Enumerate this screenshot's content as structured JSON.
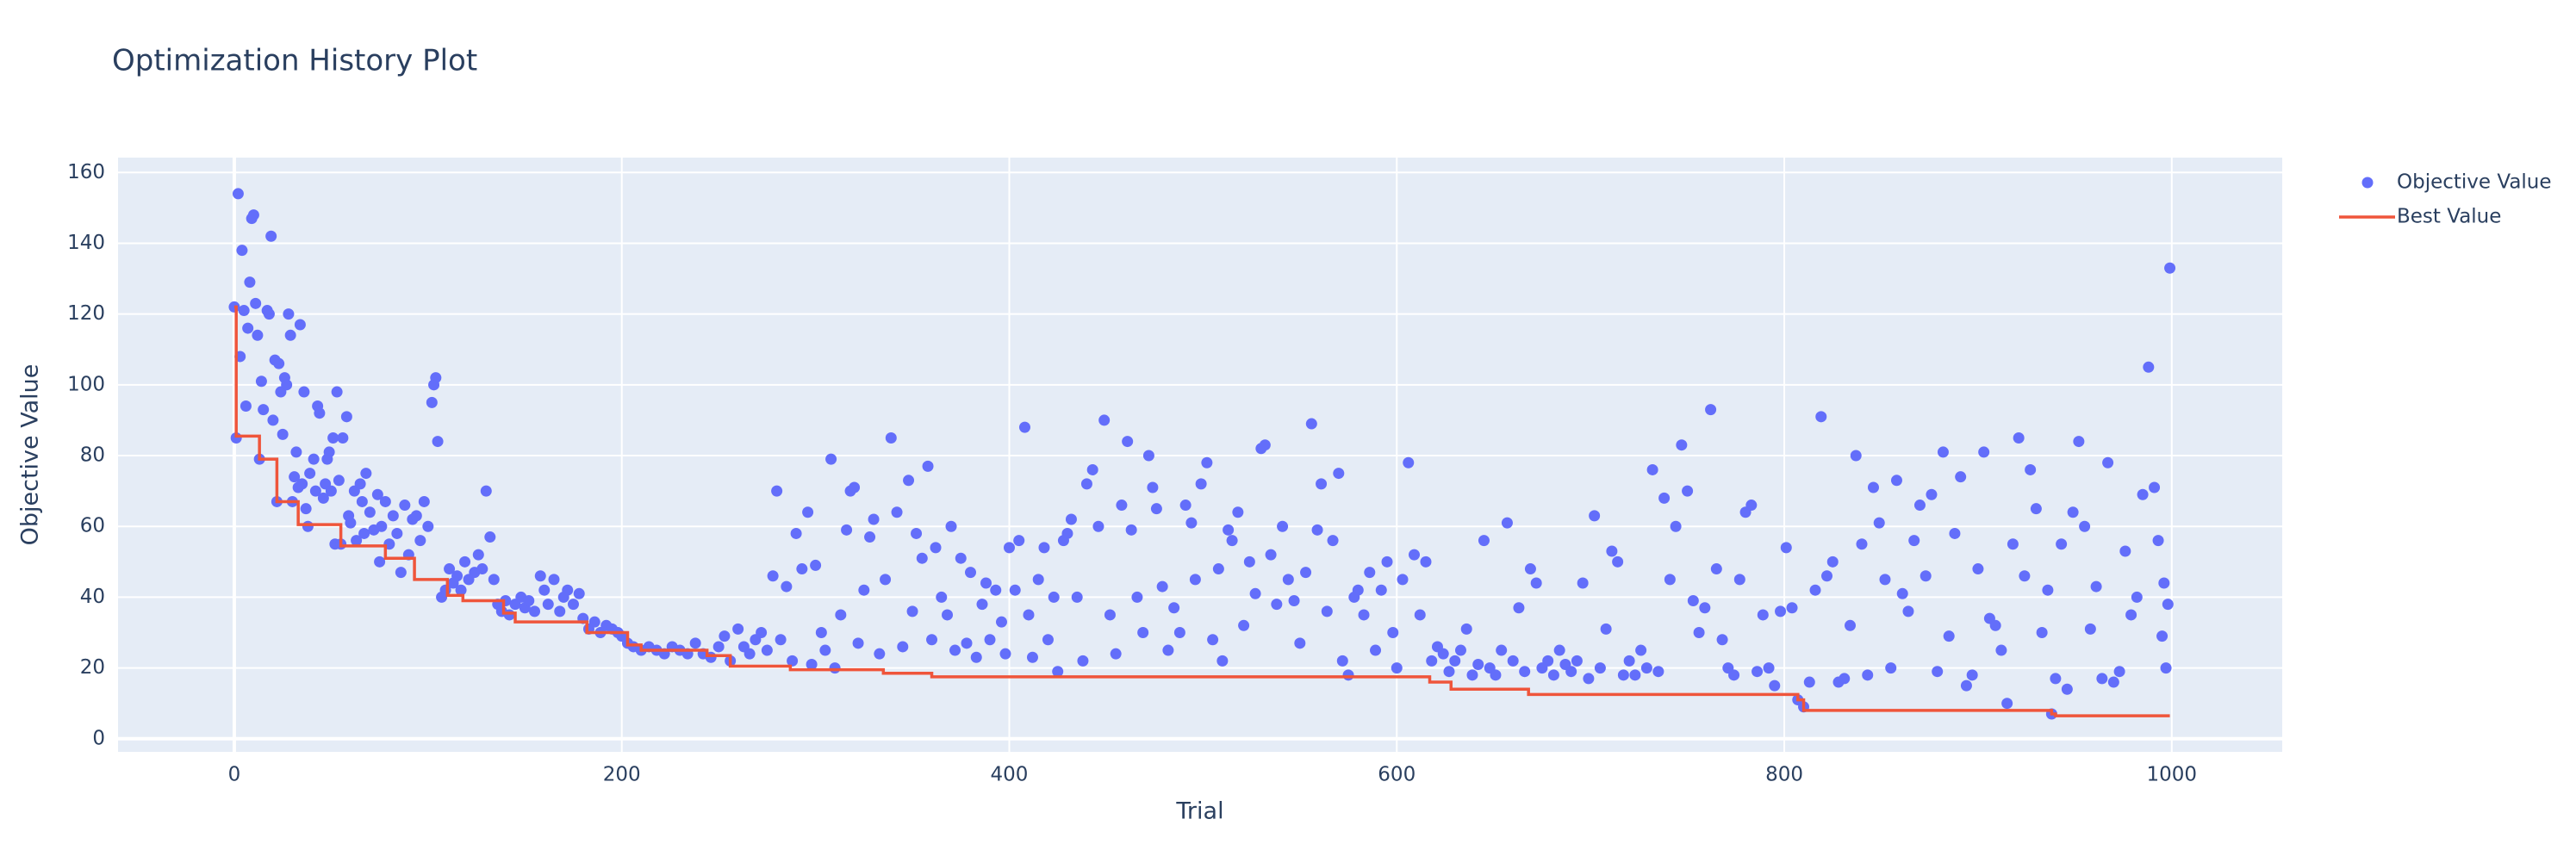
{
  "chart_data": {
    "type": "scatter-line",
    "title": "Optimization History Plot",
    "x_label": "Trial",
    "y_label": "Objective Value",
    "xlim": [
      -60,
      1057
    ],
    "ylim": [
      -3.7,
      164.2
    ],
    "xticks": [
      0,
      200,
      400,
      600,
      800,
      1000
    ],
    "yticks": [
      0,
      20,
      40,
      60,
      80,
      100,
      120,
      140,
      160
    ],
    "grid": true,
    "legend_position": "outside-top-right",
    "series": [
      {
        "name": "Objective Value",
        "mode": "markers",
        "color": "#636efa",
        "x": [
          0,
          1,
          2,
          3,
          4,
          5,
          6,
          7,
          8,
          9,
          10,
          11,
          12,
          13,
          14,
          15,
          17,
          18,
          19,
          20,
          21,
          22,
          23,
          24,
          25,
          26,
          27,
          28,
          29,
          30,
          31,
          32,
          33,
          34,
          35,
          36,
          37,
          38,
          39,
          41,
          42,
          43,
          44,
          46,
          47,
          48,
          49,
          50,
          51,
          52,
          53,
          54,
          55,
          56,
          58,
          59,
          60,
          62,
          63,
          65,
          66,
          67,
          68,
          70,
          72,
          74,
          75,
          76,
          78,
          80,
          82,
          84,
          86,
          88,
          90,
          92,
          94,
          96,
          98,
          100,
          102,
          103,
          104,
          105,
          107,
          109,
          111,
          113,
          115,
          117,
          119,
          121,
          124,
          126,
          128,
          130,
          132,
          134,
          136,
          138,
          140,
          142,
          145,
          148,
          150,
          152,
          155,
          158,
          160,
          162,
          165,
          168,
          170,
          172,
          175,
          178,
          180,
          183,
          186,
          189,
          192,
          195,
          198,
          200,
          203,
          206,
          210,
          214,
          218,
          222,
          226,
          230,
          234,
          238,
          242,
          246,
          250,
          253,
          256,
          260,
          263,
          266,
          269,
          272,
          275,
          278,
          280,
          282,
          285,
          288,
          290,
          293,
          296,
          298,
          300,
          303,
          305,
          308,
          310,
          313,
          316,
          318,
          320,
          322,
          325,
          328,
          330,
          333,
          336,
          339,
          342,
          345,
          348,
          350,
          352,
          355,
          358,
          360,
          362,
          365,
          368,
          370,
          372,
          375,
          378,
          380,
          383,
          386,
          388,
          390,
          393,
          396,
          398,
          400,
          403,
          405,
          408,
          410,
          412,
          415,
          418,
          420,
          423,
          425,
          428,
          430,
          432,
          435,
          438,
          440,
          443,
          446,
          449,
          452,
          455,
          458,
          461,
          463,
          466,
          469,
          472,
          474,
          476,
          479,
          482,
          485,
          488,
          491,
          494,
          496,
          499,
          502,
          505,
          508,
          510,
          513,
          515,
          518,
          521,
          524,
          527,
          530,
          532,
          535,
          538,
          541,
          544,
          547,
          550,
          553,
          556,
          559,
          561,
          564,
          567,
          570,
          572,
          575,
          578,
          580,
          583,
          586,
          589,
          592,
          595,
          598,
          600,
          603,
          606,
          609,
          612,
          615,
          618,
          621,
          624,
          627,
          630,
          633,
          636,
          639,
          642,
          645,
          648,
          651,
          654,
          657,
          660,
          663,
          666,
          669,
          672,
          675,
          678,
          681,
          684,
          687,
          690,
          693,
          696,
          699,
          702,
          705,
          708,
          711,
          714,
          717,
          720,
          723,
          726,
          729,
          732,
          735,
          738,
          741,
          744,
          747,
          750,
          753,
          756,
          759,
          762,
          765,
          768,
          771,
          774,
          777,
          780,
          783,
          786,
          789,
          792,
          795,
          798,
          801,
          804,
          807,
          810,
          813,
          816,
          819,
          822,
          825,
          828,
          831,
          834,
          837,
          840,
          843,
          846,
          849,
          852,
          855,
          858,
          861,
          864,
          867,
          870,
          873,
          876,
          879,
          882,
          885,
          888,
          891,
          894,
          897,
          900,
          903,
          906,
          909,
          912,
          915,
          918,
          921,
          924,
          927,
          930,
          933,
          936,
          938,
          940,
          943,
          946,
          949,
          952,
          955,
          958,
          961,
          964,
          967,
          970,
          973,
          976,
          979,
          982,
          985,
          988,
          991,
          993,
          995,
          996,
          997,
          998,
          999
        ],
        "values": [
          122,
          85,
          154,
          108,
          138,
          121,
          94,
          116,
          129,
          147,
          148,
          123,
          114,
          79,
          101,
          93,
          121,
          120,
          142,
          90,
          107,
          67,
          106,
          98,
          86,
          102,
          100,
          120,
          114,
          67,
          74,
          81,
          71,
          117,
          72,
          98,
          65,
          60,
          75,
          79,
          70,
          94,
          92,
          68,
          72,
          79,
          81,
          70,
          85,
          55,
          98,
          73,
          55,
          85,
          91,
          63,
          61,
          70,
          56,
          72,
          67,
          58,
          75,
          64,
          59,
          69,
          50,
          60,
          67,
          55,
          63,
          58,
          47,
          66,
          52,
          62,
          63,
          56,
          67,
          60,
          95,
          100,
          102,
          84,
          40,
          42,
          48,
          44,
          46,
          42,
          50,
          45,
          47,
          52,
          48,
          70,
          57,
          45,
          38,
          36,
          39,
          35,
          38,
          40,
          37,
          39,
          36,
          46,
          42,
          38,
          45,
          36,
          40,
          42,
          38,
          41,
          34,
          31,
          33,
          30,
          32,
          31,
          30,
          29,
          27,
          26,
          25,
          26,
          25,
          24,
          26,
          25,
          24,
          27,
          24,
          23,
          26,
          29,
          22,
          31,
          26,
          24,
          28,
          30,
          25,
          46,
          70,
          28,
          43,
          22,
          58,
          48,
          64,
          21,
          49,
          30,
          25,
          79,
          20,
          35,
          59,
          70,
          71,
          27,
          42,
          57,
          62,
          24,
          45,
          85,
          64,
          26,
          73,
          36,
          58,
          51,
          77,
          28,
          54,
          40,
          35,
          60,
          25,
          51,
          27,
          47,
          23,
          38,
          44,
          28,
          42,
          33,
          24,
          54,
          42,
          56,
          88,
          35,
          23,
          45,
          54,
          28,
          40,
          19,
          56,
          58,
          62,
          40,
          22,
          72,
          76,
          60,
          90,
          35,
          24,
          66,
          84,
          59,
          40,
          30,
          80,
          71,
          65,
          43,
          25,
          37,
          30,
          66,
          61,
          45,
          72,
          78,
          28,
          48,
          22,
          59,
          56,
          64,
          32,
          50,
          41,
          82,
          83,
          52,
          38,
          60,
          45,
          39,
          27,
          47,
          89,
          59,
          72,
          36,
          56,
          75,
          22,
          18,
          40,
          42,
          35,
          47,
          25,
          42,
          50,
          30,
          20,
          45,
          78,
          52,
          35,
          50,
          22,
          26,
          24,
          19,
          22,
          25,
          31,
          18,
          21,
          56,
          20,
          18,
          25,
          61,
          22,
          37,
          19,
          48,
          44,
          20,
          22,
          18,
          25,
          21,
          19,
          22,
          44,
          17,
          63,
          20,
          31,
          53,
          50,
          18,
          22,
          18,
          25,
          20,
          76,
          19,
          68,
          45,
          60,
          83,
          70,
          39,
          30,
          37,
          93,
          48,
          28,
          20,
          18,
          45,
          64,
          66,
          19,
          35,
          20,
          15,
          36,
          54,
          37,
          11,
          9,
          16,
          42,
          91,
          46,
          50,
          16,
          17,
          32,
          80,
          55,
          18,
          71,
          61,
          45,
          20,
          73,
          41,
          36,
          56,
          66,
          46,
          69,
          19,
          81,
          29,
          58,
          74,
          15,
          18,
          48,
          81,
          34,
          32,
          25,
          10,
          55,
          85,
          46,
          76,
          65,
          30,
          42,
          7,
          17,
          55,
          14,
          64,
          84,
          60,
          31,
          43,
          17,
          78,
          16,
          19,
          53,
          35,
          40,
          69,
          105,
          71,
          56,
          29,
          44,
          20,
          38,
          133
        ]
      },
      {
        "name": "Best Value",
        "mode": "line",
        "color": "#EF553B",
        "x": [
          0,
          1,
          13,
          22,
          33,
          55,
          78,
          93,
          110,
          118,
          139,
          145,
          182,
          203,
          210,
          244,
          256,
          287,
          335,
          360,
          617,
          628,
          668,
          807,
          810,
          938,
          940,
          999
        ],
        "values": [
          122,
          85.5,
          79,
          67,
          60.5,
          54.5,
          51,
          45,
          40.5,
          39,
          35.5,
          33,
          30,
          26.5,
          25,
          23.5,
          20.5,
          19.5,
          18.5,
          17.5,
          16,
          14,
          12.5,
          11,
          8,
          7,
          6.5,
          6.5
        ]
      }
    ]
  }
}
